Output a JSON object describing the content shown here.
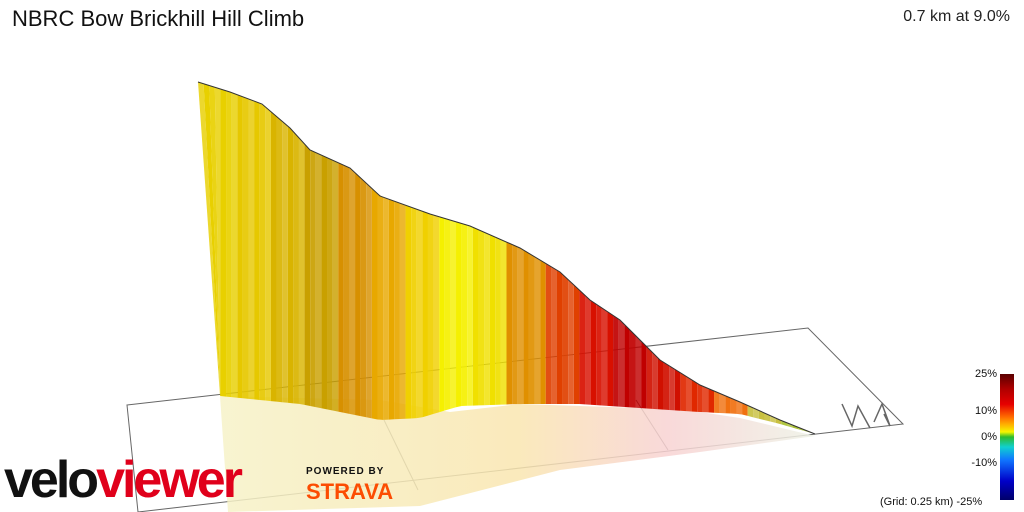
{
  "header": {
    "title": "NBRC Bow Brickhill Hill Climb",
    "summary": "0.7 km at 9.0%"
  },
  "legend": {
    "labels": [
      "25%",
      "10%",
      "0%",
      "-10%",
      "-25%"
    ],
    "grid_note": "(Grid: 0.25 km)"
  },
  "branding": {
    "velo": "velo",
    "viewer": "viewer",
    "powered_by": "POWERED BY",
    "strava": "STRAVA"
  },
  "colors": {
    "brand_red": "#e0001b",
    "strava_orange": "#fc4c02"
  }
}
